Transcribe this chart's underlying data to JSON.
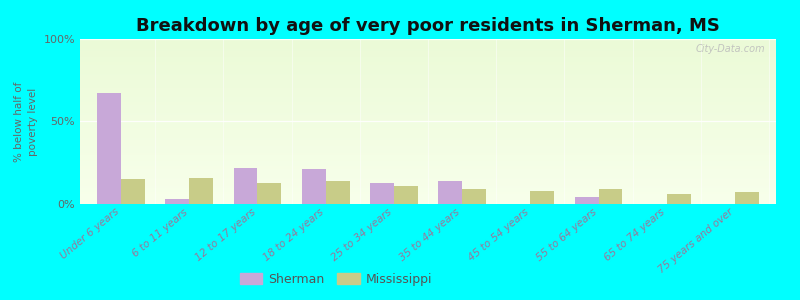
{
  "title": "Breakdown by age of very poor residents in Sherman, MS",
  "ylabel": "% below half of\npoverty level",
  "categories": [
    "Under 6 years",
    "6 to 11 years",
    "12 to 17 years",
    "18 to 24 years",
    "25 to 34 years",
    "35 to 44 years",
    "45 to 54 years",
    "55 to 64 years",
    "65 to 74 years",
    "75 years and over"
  ],
  "sherman": [
    67,
    3,
    22,
    21,
    13,
    14,
    0,
    4,
    0,
    0
  ],
  "mississippi": [
    15,
    16,
    13,
    14,
    11,
    9,
    8,
    9,
    6,
    7
  ],
  "sherman_color": "#c8a8d8",
  "mississippi_color": "#c8cc88",
  "outer_bg": "#00ffff",
  "ylim": [
    0,
    100
  ],
  "yticks": [
    0,
    50,
    100
  ],
  "ytick_labels": [
    "0%",
    "50%",
    "100%"
  ],
  "bar_width": 0.35,
  "title_fontsize": 13,
  "label_fontsize": 7.5,
  "tick_fontsize": 8,
  "legend_labels": [
    "Sherman",
    "Mississippi"
  ],
  "watermark": "City-Data.com"
}
